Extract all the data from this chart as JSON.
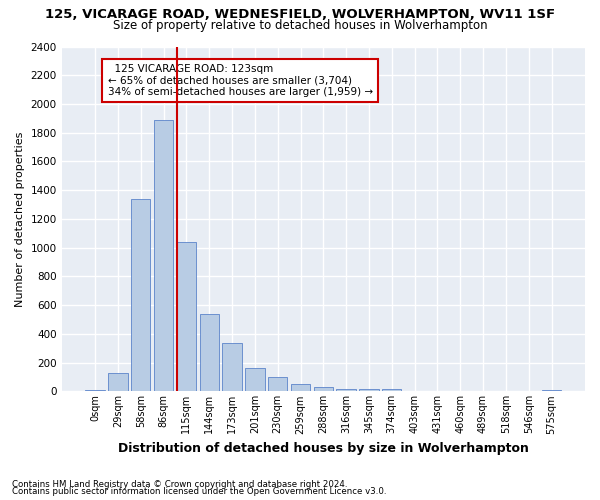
{
  "title": "125, VICARAGE ROAD, WEDNESFIELD, WOLVERHAMPTON, WV11 1SF",
  "subtitle": "Size of property relative to detached houses in Wolverhampton",
  "xlabel": "Distribution of detached houses by size in Wolverhampton",
  "ylabel": "Number of detached properties",
  "footnote1": "Contains HM Land Registry data © Crown copyright and database right 2024.",
  "footnote2": "Contains public sector information licensed under the Open Government Licence v3.0.",
  "categories": [
    "0sqm",
    "29sqm",
    "58sqm",
    "86sqm",
    "115sqm",
    "144sqm",
    "173sqm",
    "201sqm",
    "230sqm",
    "259sqm",
    "288sqm",
    "316sqm",
    "345sqm",
    "374sqm",
    "403sqm",
    "431sqm",
    "460sqm",
    "489sqm",
    "518sqm",
    "546sqm",
    "575sqm"
  ],
  "bar_values": [
    10,
    125,
    1340,
    1890,
    1040,
    540,
    340,
    165,
    100,
    50,
    30,
    20,
    15,
    15,
    5,
    0,
    5,
    0,
    0,
    0,
    10
  ],
  "bar_color": "#b8cce4",
  "bar_edge_color": "#4472c4",
  "property_line_x": 3.57,
  "property_line_label": "125 VICARAGE ROAD: 123sqm",
  "smaller_pct": "65%",
  "smaller_n": "3,704",
  "larger_pct": "34%",
  "larger_n": "1,959",
  "annotation_box_color": "#ffffff",
  "annotation_box_edge": "#cc0000",
  "property_line_color": "#cc0000",
  "ylim": [
    0,
    2400
  ],
  "yticks": [
    0,
    200,
    400,
    600,
    800,
    1000,
    1200,
    1400,
    1600,
    1800,
    2000,
    2200,
    2400
  ],
  "background_color": "#e8edf4",
  "grid_color": "#ffffff",
  "fig_background": "#ffffff",
  "title_fontsize": 9.5,
  "subtitle_fontsize": 8.5
}
